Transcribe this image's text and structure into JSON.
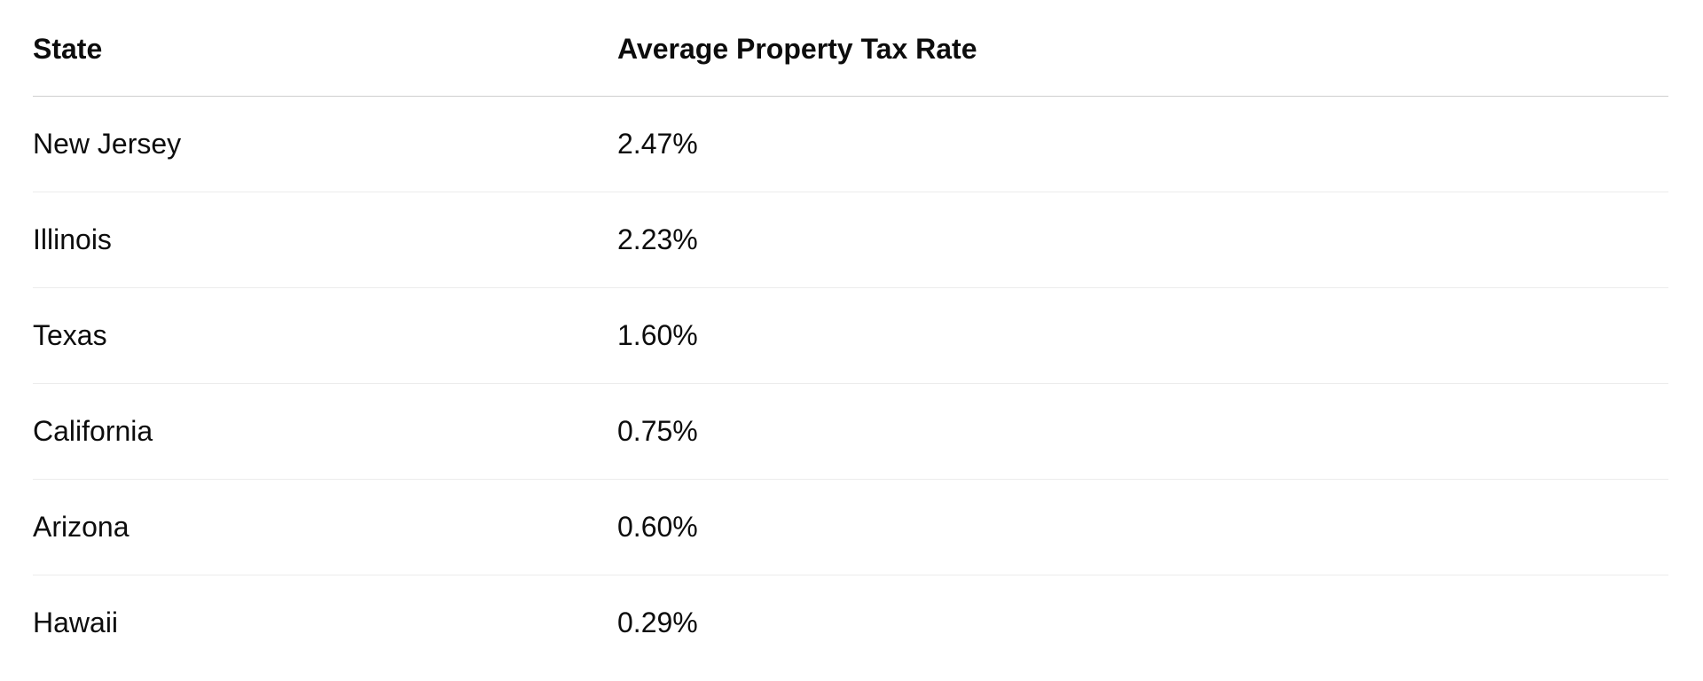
{
  "table": {
    "headers": {
      "state": "State",
      "rate": "Average Property Tax Rate"
    },
    "rows": [
      {
        "state": "New Jersey",
        "rate": "2.47%"
      },
      {
        "state": "Illinois",
        "rate": "2.23%"
      },
      {
        "state": "Texas",
        "rate": "1.60%"
      },
      {
        "state": "California",
        "rate": "0.75%"
      },
      {
        "state": "Arizona",
        "rate": "0.60%"
      },
      {
        "state": "Hawaii",
        "rate": "0.29%"
      }
    ]
  }
}
